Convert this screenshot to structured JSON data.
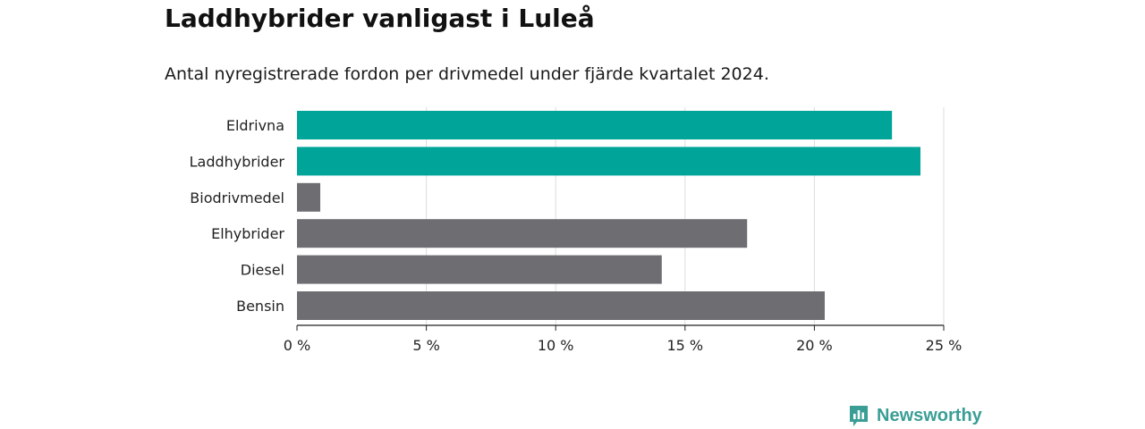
{
  "header": {
    "title": "Laddhybrider vanligast i Luleå",
    "subtitle": "Antal nyregistrerade fordon per drivmedel under fjärde kvartalet 2024."
  },
  "chart_data": {
    "type": "bar",
    "orientation": "horizontal",
    "categories": [
      "Eldrivna",
      "Laddhybrider",
      "Biodrivmedel",
      "Elhybrider",
      "Diesel",
      "Bensin"
    ],
    "values": [
      23.0,
      24.1,
      0.9,
      17.4,
      14.1,
      20.4
    ],
    "colors": [
      "#00a499",
      "#00a499",
      "#6e6d72",
      "#6e6d72",
      "#6e6d72",
      "#6e6d72"
    ],
    "xlim": [
      0,
      25
    ],
    "xticks": [
      0,
      5,
      10,
      15,
      20,
      25
    ],
    "tick_labels": [
      "0 %",
      "5 %",
      "10 %",
      "15 %",
      "20 %",
      "25 %"
    ],
    "grid": "vertical",
    "xlabel": "",
    "ylabel": ""
  },
  "brand": {
    "name": "Newsworthy",
    "icon": "newsworthy-logo-icon",
    "color": "#3a9e96"
  }
}
